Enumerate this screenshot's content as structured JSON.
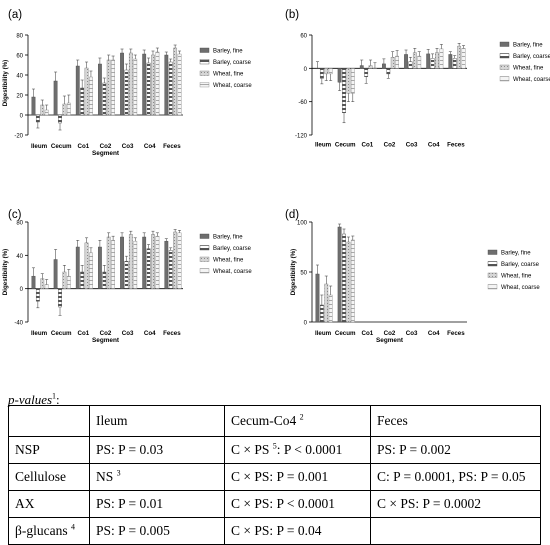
{
  "legend": [
    "Barley, fine",
    "Barley, coarse",
    "Wheat, fine",
    "Wheat, coarse"
  ],
  "chart_data": [
    {
      "type": "bar",
      "panel_label": "(a)",
      "ylabel": "Digestibility (%)",
      "xlabel": "Segment",
      "ylim": [
        -20,
        80
      ],
      "yticks": [
        -20,
        0,
        20,
        40,
        60,
        80
      ],
      "categories": [
        "Ileum",
        "Cecum",
        "Co1",
        "Co2",
        "Co3",
        "Co4",
        "Feces"
      ],
      "series": [
        {
          "name": "Barley, fine",
          "values": [
            18,
            34,
            49,
            51,
            62,
            61,
            60
          ]
        },
        {
          "name": "Barley, coarse",
          "values": [
            -7,
            -8,
            27,
            32,
            45,
            52,
            53
          ]
        },
        {
          "name": "Wheat, fine",
          "values": [
            10,
            11,
            47,
            55,
            62,
            60,
            67
          ]
        },
        {
          "name": "Wheat, coarse",
          "values": [
            5,
            12,
            38,
            55,
            56,
            63,
            61
          ]
        }
      ],
      "errors": [
        [
          8,
          9,
          6,
          6,
          4,
          4,
          3
        ],
        [
          6,
          7,
          8,
          5,
          6,
          5,
          3
        ],
        [
          5,
          8,
          6,
          5,
          4,
          4,
          3
        ],
        [
          5,
          8,
          6,
          4,
          4,
          4,
          3
        ]
      ]
    },
    {
      "type": "bar",
      "panel_label": "(b)",
      "ylabel": "",
      "xlabel": "",
      "ylim": [
        -120,
        60
      ],
      "yticks": [
        -120,
        -60,
        0,
        60
      ],
      "categories": [
        "Ileum",
        "Cecum",
        "Co1",
        "Co2",
        "Co3",
        "Co4",
        "Feces"
      ],
      "series": [
        {
          "name": "Barley, fine",
          "values": [
            0,
            -25,
            5,
            8,
            25,
            26,
            25
          ]
        },
        {
          "name": "Barley, coarse",
          "values": [
            -18,
            -80,
            -15,
            -10,
            12,
            18,
            18
          ]
        },
        {
          "name": "Wheat, fine",
          "values": [
            -10,
            -45,
            5,
            20,
            28,
            28,
            40
          ]
        },
        {
          "name": "Wheat, coarse",
          "values": [
            -10,
            -45,
            0,
            22,
            22,
            35,
            36
          ]
        }
      ],
      "errors": [
        [
          12,
          15,
          10,
          9,
          8,
          8,
          5
        ],
        [
          10,
          18,
          12,
          8,
          8,
          8,
          5
        ],
        [
          12,
          15,
          10,
          10,
          8,
          8,
          5
        ],
        [
          12,
          15,
          10,
          10,
          8,
          8,
          5
        ]
      ]
    },
    {
      "type": "bar",
      "panel_label": "(c)",
      "ylabel": "Digestibility (%)",
      "xlabel": "Segment",
      "ylim": [
        -40,
        80
      ],
      "yticks": [
        -40,
        0,
        40,
        80
      ],
      "categories": [
        "Ileum",
        "Cecum",
        "Co1",
        "Co2",
        "Co3",
        "Co4",
        "Feces"
      ],
      "series": [
        {
          "name": "Barley, fine",
          "values": [
            15,
            35,
            50,
            50,
            62,
            62,
            57
          ]
        },
        {
          "name": "Barley, coarse",
          "values": [
            -15,
            -22,
            20,
            20,
            33,
            48,
            46
          ]
        },
        {
          "name": "Wheat, fine",
          "values": [
            12,
            20,
            55,
            62,
            65,
            65,
            68
          ]
        },
        {
          "name": "Wheat, coarse",
          "values": [
            5,
            15,
            43,
            58,
            57,
            63,
            67
          ]
        }
      ],
      "errors": [
        [
          10,
          12,
          8,
          8,
          5,
          5,
          3
        ],
        [
          8,
          10,
          8,
          8,
          6,
          5,
          3
        ],
        [
          6,
          8,
          6,
          5,
          4,
          4,
          3
        ],
        [
          6,
          8,
          6,
          5,
          4,
          4,
          3
        ]
      ]
    },
    {
      "type": "bar",
      "panel_label": "(d)",
      "ylabel": "Digestibility (%)",
      "xlabel": "Segment",
      "ylim": [
        0,
        100
      ],
      "yticks": [
        0,
        50,
        100
      ],
      "categories": [
        "Ileum",
        "Cecum",
        "Co1",
        "Co2",
        "Co3",
        "Co4",
        "Feces"
      ],
      "series": [
        {
          "name": "Barley, fine",
          "values": [
            48,
            95,
            0,
            0,
            0,
            0,
            0
          ]
        },
        {
          "name": "Barley, coarse",
          "values": [
            17,
            88,
            0,
            0,
            0,
            0,
            0
          ]
        },
        {
          "name": "Wheat, fine",
          "values": [
            38,
            80,
            0,
            0,
            0,
            0,
            0
          ]
        },
        {
          "name": "Wheat, coarse",
          "values": [
            27,
            82,
            0,
            0,
            0,
            0,
            0
          ]
        }
      ],
      "errors": [
        [
          9,
          3,
          0,
          0,
          0,
          0,
          0
        ],
        [
          10,
          5,
          0,
          0,
          0,
          0,
          0
        ],
        [
          8,
          5,
          0,
          0,
          0,
          0,
          0
        ],
        [
          9,
          4,
          0,
          0,
          0,
          0,
          0
        ]
      ]
    }
  ],
  "pvalues": {
    "label": "p-values",
    "label_sup": "1",
    "label_suffix": ":",
    "header": [
      "",
      "Ileum",
      "Cecum-Co4",
      "Feces"
    ],
    "rows": [
      {
        "name": "NSP",
        "ileum": "PS: P = 0.03",
        "cecum": "C × PS 5: P < 0.0001",
        "feces": "PS: P = 0.002"
      },
      {
        "name": "Cellulose",
        "ileum": "NS 3",
        "cecum": "C × PS: P = 0.001",
        "feces": "C: P = 0.0001, PS: P = 0.05"
      },
      {
        "name": "AX",
        "ileum": "PS: P = 0.01",
        "cecum": "C × PS: P < 0.0001",
        "feces": "C × PS: P = 0.0002"
      },
      {
        "name": "β-glucans 4",
        "ileum": "PS: P = 0.005",
        "cecum": "C × PS: P = 0.04",
        "feces": ""
      }
    ]
  }
}
